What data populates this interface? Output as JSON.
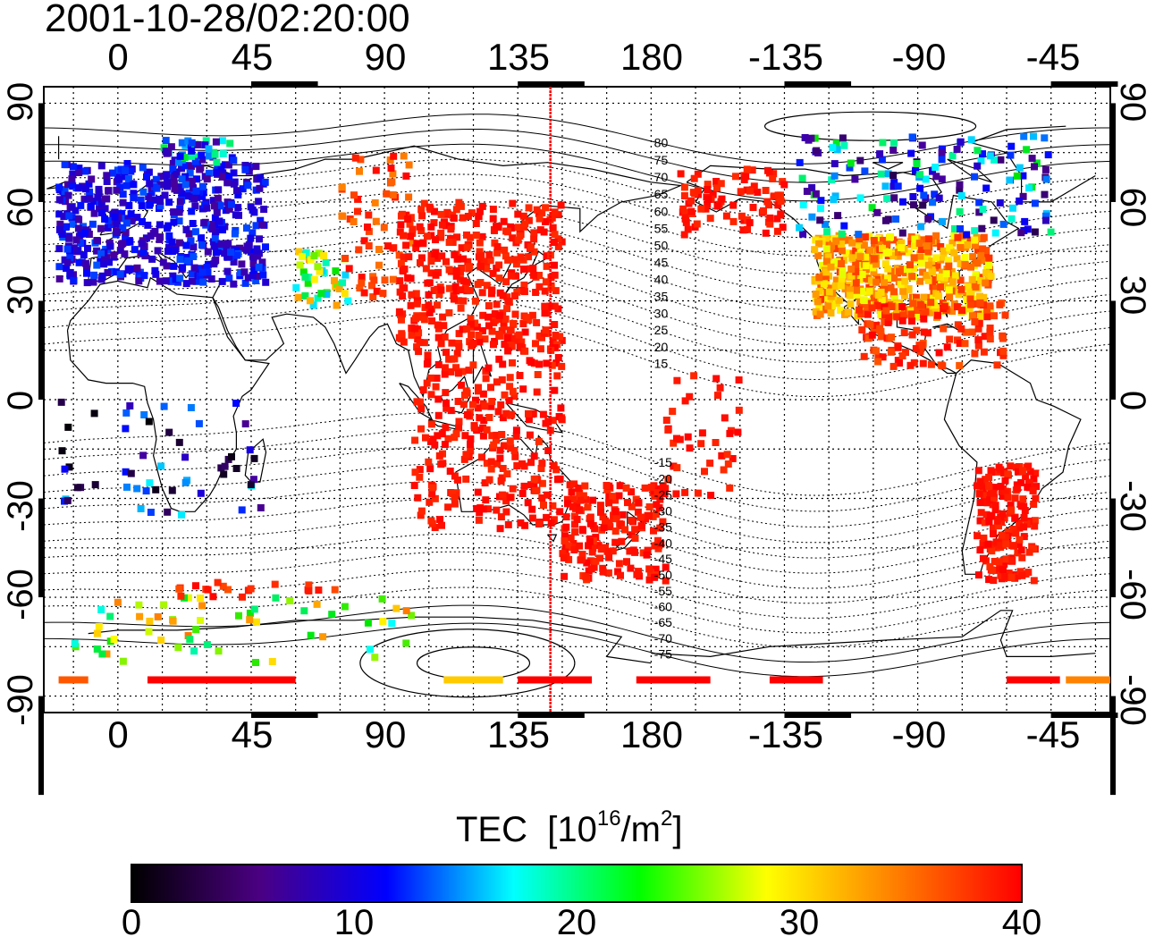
{
  "title": "2001-10-28/02:20:00",
  "lon_ticks": [
    "0",
    "45",
    "90",
    "135",
    "180",
    "-135",
    "-90",
    "-45"
  ],
  "lat_ticks": [
    "90",
    "60",
    "30",
    "0",
    "-30",
    "-60",
    "-90"
  ],
  "mag_lat_labels": [
    "80",
    "75",
    "70",
    "65",
    "60",
    "55",
    "50",
    "45",
    "40",
    "35",
    "30",
    "25",
    "20",
    "15",
    "-15",
    "-20",
    "-25",
    "-30",
    "-35",
    "-40",
    "-45",
    "-50",
    "-55",
    "-60",
    "-65",
    "-70",
    "-75"
  ],
  "colorbar": {
    "label": "TEC",
    "unit_prefix": "[10",
    "unit_exp": "16",
    "unit_mid": "/m",
    "unit_sq": "2",
    "unit_suffix": "]",
    "ticks": [
      "0",
      "10",
      "20",
      "30",
      "40"
    ],
    "range": [
      0,
      40
    ],
    "colors": [
      "#000000",
      "#4b0082",
      "#0000ff",
      "#00ffff",
      "#00ff00",
      "#ffff00",
      "#ff8000",
      "#ff0000"
    ]
  },
  "marker": {
    "longitude": 146,
    "color": "#ff0000"
  },
  "map_extent": {
    "lon": [
      -25,
      335
    ],
    "lat": [
      -95,
      95
    ]
  }
}
